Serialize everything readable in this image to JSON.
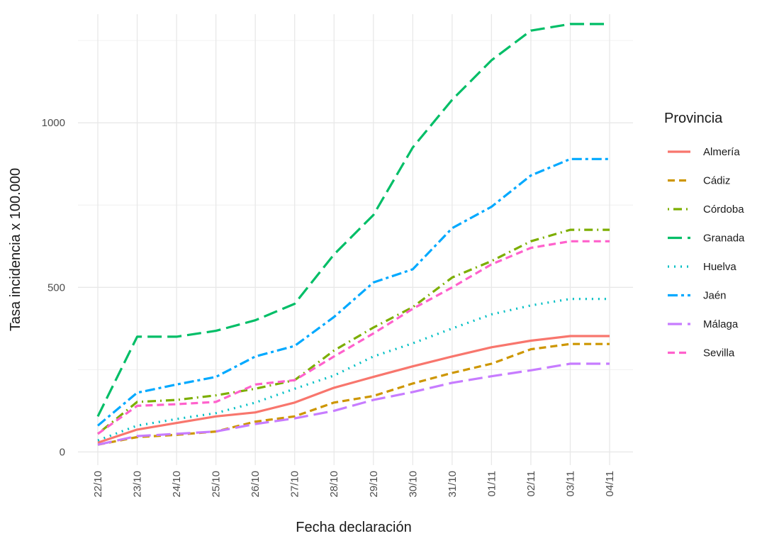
{
  "chart_data": {
    "type": "line",
    "title": "",
    "xlabel": "Fecha declaración",
    "ylabel": "Tasa incidencia x 100.000",
    "categories": [
      "22/10",
      "23/10",
      "24/10",
      "25/10",
      "26/10",
      "27/10",
      "28/10",
      "29/10",
      "30/10",
      "31/10",
      "01/11",
      "02/11",
      "03/11",
      "04/11"
    ],
    "yticks": [
      0,
      500,
      1000
    ],
    "ylim": [
      -40,
      1330
    ],
    "grid": true,
    "legend": {
      "title": "Provincia",
      "position": "right"
    },
    "series": [
      {
        "name": "Almería",
        "color": "#F8766D",
        "dash": "solid",
        "values": [
          28,
          68,
          88,
          108,
          120,
          150,
          195,
          228,
          260,
          290,
          318,
          338,
          352,
          352
        ]
      },
      {
        "name": "Cádiz",
        "color": "#CD9600",
        "dash": "dashed",
        "values": [
          22,
          45,
          52,
          62,
          92,
          108,
          150,
          170,
          208,
          240,
          268,
          312,
          328,
          328
        ]
      },
      {
        "name": "Córdoba",
        "color": "#7CAE00",
        "dash": "dotdash",
        "values": [
          55,
          152,
          158,
          172,
          192,
          218,
          308,
          378,
          440,
          530,
          580,
          640,
          675,
          675
        ]
      },
      {
        "name": "Granada",
        "color": "#00BE67",
        "dash": "longdash",
        "values": [
          108,
          350,
          350,
          368,
          400,
          450,
          600,
          720,
          925,
          1070,
          1190,
          1280,
          1300,
          1300
        ]
      },
      {
        "name": "Huelva",
        "color": "#00BFC4",
        "dash": "dotted",
        "values": [
          35,
          80,
          100,
          118,
          150,
          192,
          232,
          290,
          330,
          375,
          418,
          445,
          465,
          465
        ]
      },
      {
        "name": "Jaén",
        "color": "#00A9FF",
        "dash": "twodash",
        "values": [
          80,
          180,
          205,
          228,
          290,
          322,
          410,
          515,
          555,
          680,
          745,
          840,
          890,
          890
        ]
      },
      {
        "name": "Málaga",
        "color": "#C77CFF",
        "dash": "longdash",
        "values": [
          22,
          48,
          55,
          62,
          85,
          102,
          125,
          158,
          182,
          210,
          230,
          248,
          268,
          268
        ]
      },
      {
        "name": "Sevilla",
        "color": "#FF61CC",
        "dash": "dashed",
        "values": [
          55,
          140,
          145,
          152,
          205,
          218,
          290,
          360,
          435,
          500,
          570,
          620,
          640,
          640
        ]
      }
    ]
  }
}
